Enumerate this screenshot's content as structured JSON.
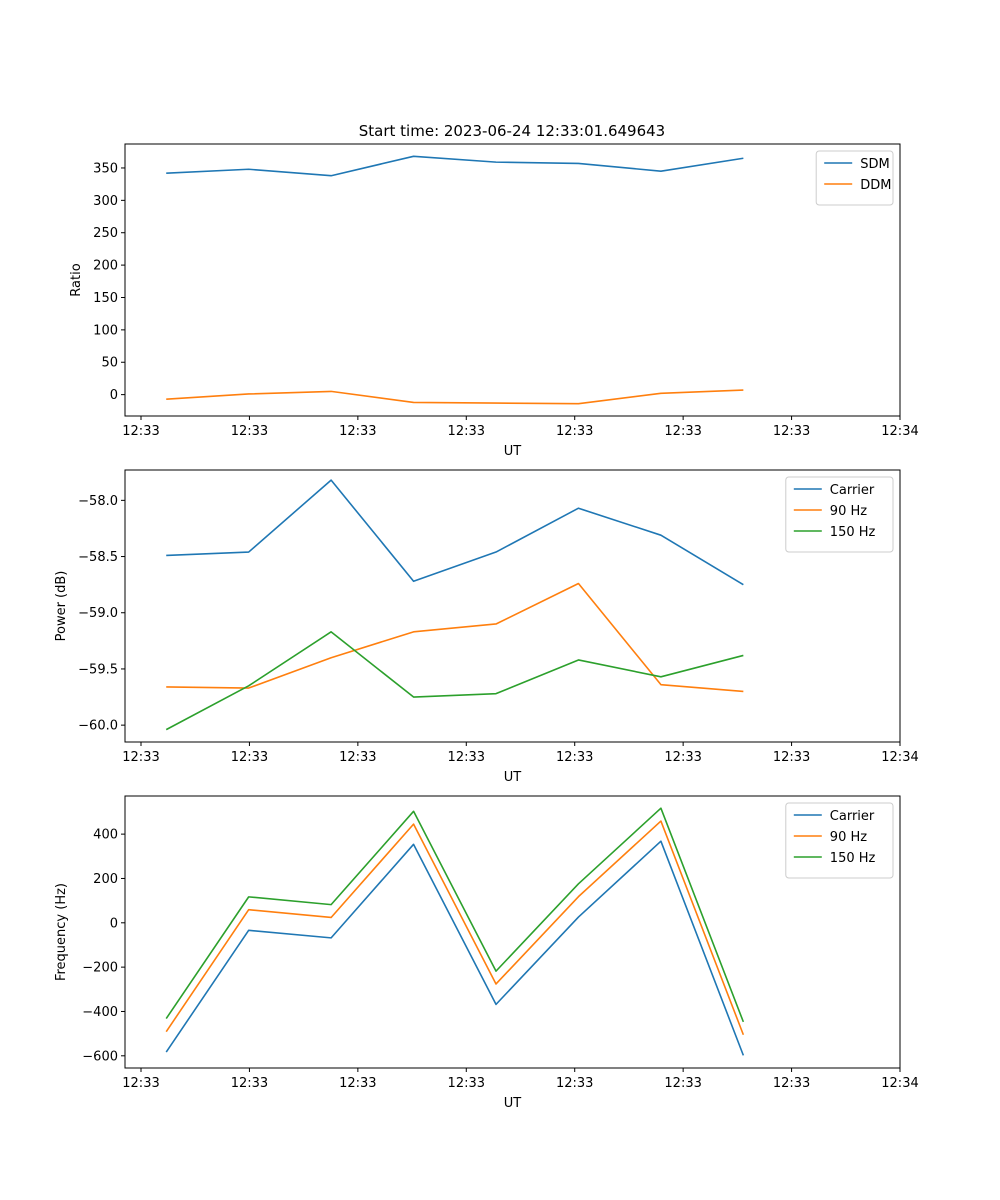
{
  "figure_title": "Start time: 2023-06-24 12:33:01.649643",
  "chart_data": [
    {
      "type": "line",
      "title": "Start time: 2023-06-24 12:33:01.649643",
      "xlabel": "UT",
      "ylabel": "Ratio",
      "x_tick_labels": [
        "12:33",
        "12:33",
        "12:33",
        "12:33",
        "12:33",
        "12:33",
        "12:33",
        "12:34"
      ],
      "x_sample_index": [
        1,
        2,
        3,
        4,
        5,
        6,
        7,
        8
      ],
      "xlim": [
        0.5,
        9.9
      ],
      "ylim": [
        -33,
        387
      ],
      "y_ticks": [
        0,
        50,
        100,
        150,
        200,
        250,
        300,
        350
      ],
      "y_tick_labels": [
        "0",
        "50",
        "100",
        "150",
        "200",
        "250",
        "300",
        "350"
      ],
      "legend": "top-right",
      "grid": false,
      "series": [
        {
          "name": "SDM",
          "color": "#1f77b4",
          "values": [
            342,
            348,
            338,
            368,
            359,
            357,
            345,
            365
          ]
        },
        {
          "name": "DDM",
          "color": "#ff7f0e",
          "values": [
            -7,
            1,
            5,
            -12,
            -13,
            -14,
            2,
            7
          ]
        }
      ]
    },
    {
      "type": "line",
      "xlabel": "UT",
      "ylabel": "Power (dB)",
      "x_tick_labels": [
        "12:33",
        "12:33",
        "12:33",
        "12:33",
        "12:33",
        "12:33",
        "12:33",
        "12:34"
      ],
      "x_sample_index": [
        1,
        2,
        3,
        4,
        5,
        6,
        7,
        8
      ],
      "xlim": [
        0.5,
        9.9
      ],
      "ylim": [
        -60.15,
        -57.73
      ],
      "y_ticks": [
        -60.0,
        -59.5,
        -59.0,
        -58.5,
        -58.0
      ],
      "y_tick_labels": [
        "−60.0",
        "−59.5",
        "−59.0",
        "−58.5",
        "−58.0"
      ],
      "legend": "top-right",
      "grid": false,
      "series": [
        {
          "name": "Carrier",
          "color": "#1f77b4",
          "values": [
            -58.49,
            -58.46,
            -57.82,
            -58.72,
            -58.46,
            -58.07,
            -58.31,
            -58.75
          ]
        },
        {
          "name": "90 Hz",
          "color": "#ff7f0e",
          "values": [
            -59.66,
            -59.67,
            -59.4,
            -59.17,
            -59.1,
            -58.74,
            -59.64,
            -59.7
          ]
        },
        {
          "name": "150 Hz",
          "color": "#2ca02c",
          "values": [
            -60.04,
            -59.65,
            -59.17,
            -59.75,
            -59.72,
            -59.42,
            -59.57,
            -59.38
          ]
        }
      ]
    },
    {
      "type": "line",
      "xlabel": "UT",
      "ylabel": "Frequency (Hz)",
      "x_tick_labels": [
        "12:33",
        "12:33",
        "12:33",
        "12:33",
        "12:33",
        "12:33",
        "12:33",
        "12:34"
      ],
      "x_sample_index": [
        1,
        2,
        3,
        4,
        5,
        6,
        7,
        8
      ],
      "xlim": [
        0.5,
        9.9
      ],
      "ylim": [
        -655,
        572
      ],
      "y_ticks": [
        -600,
        -400,
        -200,
        0,
        200,
        400
      ],
      "y_tick_labels": [
        "−600",
        "−400",
        "−200",
        "0",
        "200",
        "400"
      ],
      "legend": "top-right",
      "grid": false,
      "series": [
        {
          "name": "Carrier",
          "color": "#1f77b4",
          "values": [
            -583,
            -34,
            -68,
            354,
            -368,
            26,
            368,
            -598
          ]
        },
        {
          "name": "90 Hz",
          "color": "#ff7f0e",
          "values": [
            -491,
            59,
            24,
            445,
            -276,
            118,
            459,
            -505
          ]
        },
        {
          "name": "150 Hz",
          "color": "#2ca02c",
          "values": [
            -432,
            117,
            82,
            503,
            -218,
            176,
            517,
            -447
          ]
        }
      ]
    }
  ]
}
